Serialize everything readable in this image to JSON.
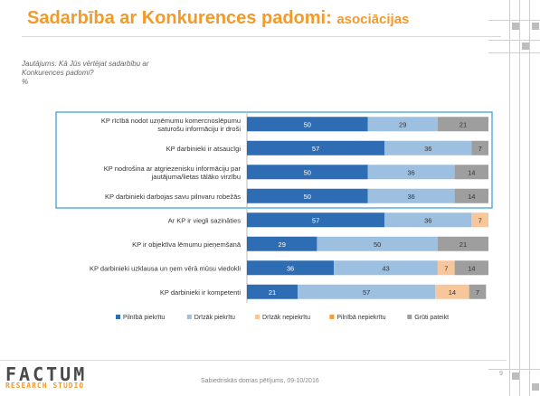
{
  "slide": {
    "title_main": "Sadarbība ar Konkurences padomi:",
    "title_sub": "asociācijas",
    "question_lines": [
      "Jautājums: Kā Jūs vērtējat sadarbību ar",
      "Konkurences padomi?",
      "%"
    ],
    "footer_text": "Sabiedriskās domas pētījums, 09-10/2016",
    "page_number": "9",
    "logo_main": "FACTUM",
    "logo_sub": "RESEARCH STUDIO"
  },
  "colors": {
    "title": "#f39a2b",
    "highlight_box": "#2e9ad6"
  },
  "chart_data": {
    "type": "bar",
    "orientation": "horizontal",
    "stacked": true,
    "xlim": [
      0,
      100
    ],
    "legend_position": "bottom",
    "categories": [
      [
        "KP rīcībā nodot uzņēmumu komercnoslēpumu",
        "saturošu informāciju ir droši"
      ],
      [
        "KP darbinieki ir atsaucīgi"
      ],
      [
        "KP nodrošina ar atgriezenisku informāciju par",
        "jautājuma/lietas tālāko virzību"
      ],
      [
        "KP darbinieki darbojas savu pilnvaru robežās"
      ],
      [
        "Ar KP ir viegli sazināties"
      ],
      [
        "KP ir objektīva lēmumu pieņemšanā"
      ],
      [
        "KP darbinieki uzklausa un ņem vērā mūsu viedokli"
      ],
      [
        "KP darbinieki ir kompetenti"
      ]
    ],
    "series": [
      {
        "name": "Pilnībā piekrītu",
        "color": "#2e6db4",
        "values": [
          50,
          57,
          50,
          50,
          57,
          29,
          36,
          21
        ]
      },
      {
        "name": "Drīzāk piekrītu",
        "color": "#9dbfe0",
        "values": [
          29,
          36,
          36,
          36,
          36,
          50,
          43,
          57
        ]
      },
      {
        "name": "Drīzāk nepiekrītu",
        "color": "#f8c69b",
        "values": [
          0,
          0,
          0,
          0,
          7,
          0,
          7,
          14
        ]
      },
      {
        "name": "Pilnībā nepiekrītu",
        "color": "#f59b38",
        "values": [
          0,
          0,
          0,
          0,
          0,
          0,
          0,
          0
        ]
      },
      {
        "name": "Grūti pateikt",
        "color": "#9e9e9e",
        "values": [
          21,
          7,
          14,
          14,
          0,
          21,
          14,
          7
        ]
      }
    ],
    "highlighted_categories": [
      0,
      1,
      2,
      3
    ]
  }
}
